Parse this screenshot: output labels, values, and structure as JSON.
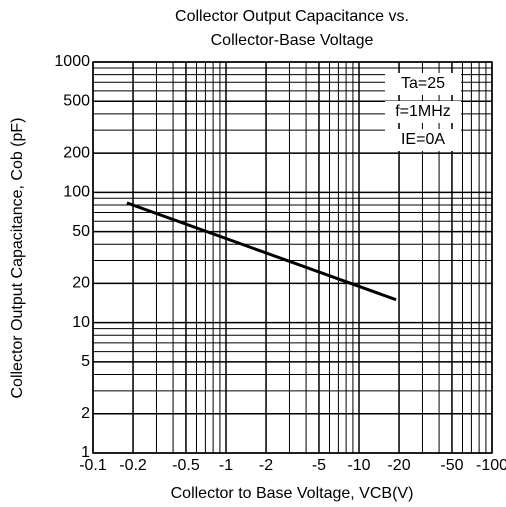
{
  "chart_data": {
    "type": "line",
    "title": [
      "Collector Output Capacitance  vs.",
      "Collector-Base Voltage"
    ],
    "x_label": "Collector to Base Voltage, VCB(V)",
    "y_label": "Collector Output Capacitance, Cob (pF)",
    "annotations": [
      "Ta=25",
      "f=1MHz",
      "IE=0A"
    ],
    "x": [
      -0.18,
      -19
    ],
    "series": [
      {
        "name": null,
        "color": "#000000",
        "values": [
          83,
          15
        ]
      }
    ],
    "xlim": [
      -0.1,
      -100
    ],
    "ylim": [
      1,
      1000
    ],
    "xticks": [
      -0.1,
      -0.2,
      -0.5,
      -1,
      -2,
      -5,
      -10,
      -20,
      -50,
      -100
    ],
    "yticks": [
      1,
      2,
      5,
      10,
      20,
      50,
      100,
      200,
      500,
      1000
    ],
    "xscale": "log",
    "yscale": "log",
    "grid": true,
    "minor_grid": true
  }
}
